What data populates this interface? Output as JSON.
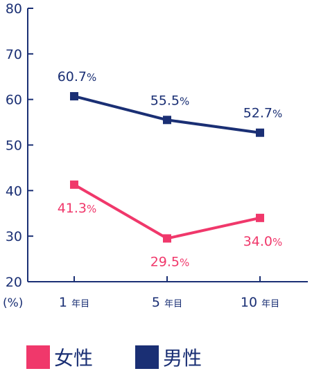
{
  "chart_data": {
    "type": "line",
    "categories": [
      {
        "num": "1",
        "suffix": "年目"
      },
      {
        "num": "5",
        "suffix": "年目"
      },
      {
        "num": "10",
        "suffix": "年目"
      }
    ],
    "y_unit": "(%)",
    "ylim": [
      20,
      80
    ],
    "yticks": [
      "20",
      "30",
      "40",
      "50",
      "60",
      "70",
      "80"
    ],
    "grid": false,
    "legend_position": "bottom",
    "series": [
      {
        "name": "女性",
        "color": "#f0386b",
        "values": [
          41.3,
          29.5,
          34.0
        ],
        "labels": [
          "41.3",
          "29.5",
          "34.0"
        ],
        "label_pos": "below"
      },
      {
        "name": "男性",
        "color": "#1a2f74",
        "values": [
          60.7,
          55.5,
          52.7
        ],
        "labels": [
          "60.7",
          "55.5",
          "52.7"
        ],
        "label_pos": "above"
      }
    ],
    "percent_sign": "%"
  }
}
